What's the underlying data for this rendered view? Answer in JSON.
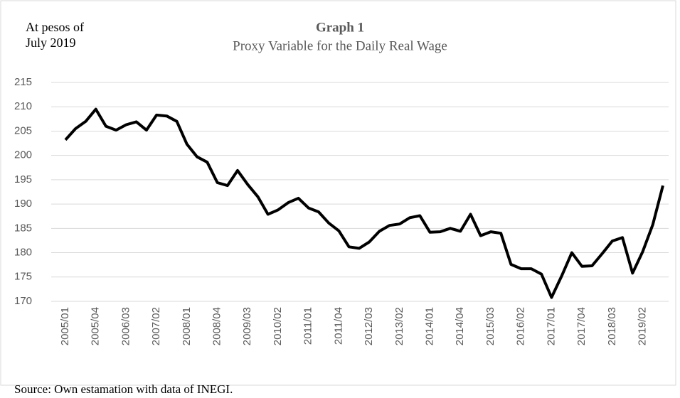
{
  "chart_data": {
    "type": "line",
    "title": "Graph 1",
    "subtitle": "Proxy  Variable for the Daily Real Wage",
    "ylabel": [
      "At pesos of",
      "July 2019"
    ],
    "note": "Source: Own estamation with data of INEGI.",
    "categories": [
      "2005/01",
      null,
      null,
      "2005/04",
      null,
      null,
      "2006/03",
      null,
      null,
      "2007/02",
      null,
      null,
      "2008/01",
      null,
      null,
      "2008/04",
      null,
      null,
      "2009/03",
      null,
      null,
      "2010/02",
      null,
      null,
      "2011/01",
      null,
      null,
      "2011/04",
      null,
      null,
      "2012/03",
      null,
      null,
      "2013/02",
      null,
      null,
      "2014/01",
      null,
      null,
      "2014/04",
      null,
      null,
      "2015/03",
      null,
      null,
      "2016/02",
      null,
      null,
      "2017/01",
      null,
      null,
      "2017/04",
      null,
      null,
      "2018/03",
      null,
      null,
      "2019/02",
      null,
      null
    ],
    "series": [
      {
        "name": "Proxy Variable for the Daily Real Wage",
        "color": "#000000",
        "values": [
          203.2,
          205.5,
          207,
          209.5,
          206,
          205.2,
          206.3,
          206.9,
          205.2,
          208.3,
          208.1,
          207,
          202.3,
          199.7,
          198.6,
          194.4,
          193.8,
          196.9,
          194,
          191.5,
          187.9,
          188.8,
          190.3,
          191.2,
          189.2,
          188.4,
          186.1,
          184.5,
          181.2,
          180.9,
          182.2,
          184.4,
          185.6,
          185.9,
          187.2,
          187.6,
          184.2,
          184.3,
          185,
          184.4,
          187.9,
          183.5,
          184.3,
          184,
          177.6,
          176.7,
          176.7,
          175.6,
          170.8,
          175.2,
          180,
          177.2,
          177.3,
          179.8,
          182.4,
          183.1,
          175.8,
          180.2,
          185.8,
          193.8
        ]
      }
    ],
    "ylim": [
      170,
      215
    ],
    "yticks": [
      170,
      175,
      180,
      185,
      190,
      195,
      200,
      205,
      210,
      215
    ],
    "grid": true
  }
}
